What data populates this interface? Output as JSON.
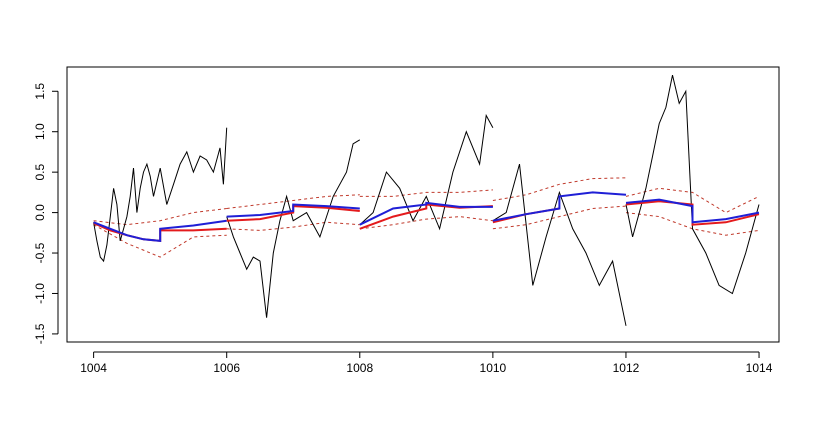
{
  "chart_data": {
    "type": "line",
    "title": "",
    "xlabel": "",
    "ylabel": "",
    "xlim": [
      1003.6,
      1014.3
    ],
    "ylim": [
      -1.6,
      1.8
    ],
    "x_ticks": [
      1004,
      1006,
      1008,
      1010,
      1012,
      1014
    ],
    "x_tick_labels": [
      "1004",
      "1006",
      "1008",
      "1010",
      "1012",
      "1014"
    ],
    "y_ticks": [
      -1.5,
      -1.0,
      -0.5,
      0.0,
      0.5,
      1.0,
      1.5
    ],
    "y_tick_labels": [
      "-1.5",
      "-1.0",
      "-0.5",
      "0.0",
      "0.5",
      "1.0",
      "1.5"
    ],
    "grid": false,
    "legend": "none",
    "colors": {
      "observed": "#000000",
      "red_fit": "#e41a1c",
      "blue_fit": "#1f1fd6",
      "band": "#c0392b"
    },
    "segments": [
      {
        "observed": [
          [
            1004.0,
            -0.12
          ],
          [
            1004.05,
            -0.35
          ],
          [
            1004.1,
            -0.55
          ],
          [
            1004.15,
            -0.6
          ],
          [
            1004.2,
            -0.4
          ],
          [
            1004.25,
            -0.05
          ],
          [
            1004.3,
            0.3
          ],
          [
            1004.35,
            0.1
          ],
          [
            1004.4,
            -0.35
          ],
          [
            1004.45,
            -0.2
          ],
          [
            1004.5,
            -0.05
          ],
          [
            1004.55,
            0.2
          ],
          [
            1004.6,
            0.55
          ],
          [
            1004.65,
            0.0
          ],
          [
            1004.7,
            0.3
          ],
          [
            1004.75,
            0.5
          ],
          [
            1004.8,
            0.6
          ],
          [
            1004.85,
            0.45
          ],
          [
            1004.9,
            0.2
          ],
          [
            1005.0,
            0.55
          ],
          [
            1005.1,
            0.1
          ],
          [
            1005.2,
            0.35
          ],
          [
            1005.3,
            0.6
          ],
          [
            1005.4,
            0.75
          ],
          [
            1005.5,
            0.5
          ],
          [
            1005.6,
            0.7
          ],
          [
            1005.7,
            0.65
          ],
          [
            1005.8,
            0.5
          ],
          [
            1005.9,
            0.8
          ],
          [
            1005.95,
            0.35
          ],
          [
            1006.0,
            1.05
          ]
        ],
        "red": [
          [
            1004.0,
            -0.13
          ],
          [
            1004.25,
            -0.22
          ],
          [
            1004.5,
            -0.28
          ],
          [
            1004.75,
            -0.33
          ],
          [
            1005.0,
            -0.35
          ],
          [
            1005.0,
            -0.22
          ],
          [
            1005.5,
            -0.22
          ],
          [
            1006.0,
            -0.2
          ]
        ],
        "blue": [
          [
            1004.0,
            -0.12
          ],
          [
            1004.25,
            -0.2
          ],
          [
            1004.5,
            -0.28
          ],
          [
            1004.75,
            -0.33
          ],
          [
            1005.0,
            -0.35
          ],
          [
            1005.0,
            -0.2
          ],
          [
            1005.5,
            -0.16
          ],
          [
            1006.0,
            -0.1
          ]
        ],
        "band_upper": [
          [
            1004.0,
            -0.1
          ],
          [
            1004.5,
            -0.15
          ],
          [
            1005.0,
            -0.1
          ],
          [
            1005.5,
            -0.0
          ],
          [
            1006.0,
            0.05
          ]
        ],
        "band_lower": [
          [
            1004.0,
            -0.15
          ],
          [
            1004.5,
            -0.38
          ],
          [
            1005.0,
            -0.55
          ],
          [
            1005.5,
            -0.3
          ],
          [
            1006.0,
            -0.28
          ]
        ]
      },
      {
        "observed": [
          [
            1006.0,
            -0.05
          ],
          [
            1006.1,
            -0.3
          ],
          [
            1006.2,
            -0.5
          ],
          [
            1006.3,
            -0.7
          ],
          [
            1006.4,
            -0.55
          ],
          [
            1006.5,
            -0.6
          ],
          [
            1006.6,
            -1.3
          ],
          [
            1006.7,
            -0.5
          ],
          [
            1006.8,
            -0.1
          ],
          [
            1006.9,
            0.2
          ],
          [
            1007.0,
            -0.1
          ],
          [
            1007.2,
            0.0
          ],
          [
            1007.4,
            -0.3
          ],
          [
            1007.6,
            0.2
          ],
          [
            1007.8,
            0.5
          ],
          [
            1007.9,
            0.85
          ],
          [
            1008.0,
            0.9
          ]
        ],
        "red": [
          [
            1006.0,
            -0.1
          ],
          [
            1006.5,
            -0.08
          ],
          [
            1007.0,
            0.0
          ],
          [
            1007.0,
            0.08
          ],
          [
            1007.5,
            0.06
          ],
          [
            1008.0,
            0.02
          ]
        ],
        "blue": [
          [
            1006.0,
            -0.05
          ],
          [
            1006.5,
            -0.03
          ],
          [
            1007.0,
            0.02
          ],
          [
            1007.0,
            0.1
          ],
          [
            1007.5,
            0.08
          ],
          [
            1008.0,
            0.05
          ]
        ],
        "band_upper": [
          [
            1006.0,
            0.05
          ],
          [
            1006.5,
            0.1
          ],
          [
            1007.0,
            0.15
          ],
          [
            1007.5,
            0.2
          ],
          [
            1008.0,
            0.22
          ]
        ],
        "band_lower": [
          [
            1006.0,
            -0.2
          ],
          [
            1006.5,
            -0.22
          ],
          [
            1007.0,
            -0.18
          ],
          [
            1007.5,
            -0.12
          ],
          [
            1008.0,
            -0.15
          ]
        ]
      },
      {
        "observed": [
          [
            1008.0,
            -0.15
          ],
          [
            1008.2,
            0.0
          ],
          [
            1008.4,
            0.5
          ],
          [
            1008.6,
            0.3
          ],
          [
            1008.8,
            -0.1
          ],
          [
            1009.0,
            0.2
          ],
          [
            1009.2,
            -0.2
          ],
          [
            1009.4,
            0.5
          ],
          [
            1009.6,
            1.0
          ],
          [
            1009.8,
            0.6
          ],
          [
            1009.9,
            1.2
          ],
          [
            1010.0,
            1.05
          ]
        ],
        "red": [
          [
            1008.0,
            -0.2
          ],
          [
            1008.5,
            -0.05
          ],
          [
            1009.0,
            0.05
          ],
          [
            1009.0,
            0.1
          ],
          [
            1009.5,
            0.06
          ],
          [
            1010.0,
            0.08
          ]
        ],
        "blue": [
          [
            1008.0,
            -0.15
          ],
          [
            1008.5,
            0.05
          ],
          [
            1009.0,
            0.1
          ],
          [
            1009.0,
            0.12
          ],
          [
            1009.5,
            0.07
          ],
          [
            1010.0,
            0.07
          ]
        ],
        "band_upper": [
          [
            1008.0,
            0.2
          ],
          [
            1008.5,
            0.2
          ],
          [
            1009.0,
            0.25
          ],
          [
            1009.5,
            0.25
          ],
          [
            1010.0,
            0.28
          ]
        ],
        "band_lower": [
          [
            1008.0,
            -0.2
          ],
          [
            1008.5,
            -0.15
          ],
          [
            1009.0,
            -0.08
          ],
          [
            1009.5,
            -0.05
          ],
          [
            1010.0,
            -0.1
          ]
        ]
      },
      {
        "observed": [
          [
            1010.0,
            -0.1
          ],
          [
            1010.2,
            0.0
          ],
          [
            1010.4,
            0.6
          ],
          [
            1010.6,
            -0.9
          ],
          [
            1010.8,
            -0.3
          ],
          [
            1011.0,
            0.25
          ],
          [
            1011.2,
            -0.2
          ],
          [
            1011.4,
            -0.5
          ],
          [
            1011.6,
            -0.9
          ],
          [
            1011.8,
            -0.6
          ],
          [
            1012.0,
            -1.4
          ]
        ],
        "red": [
          [
            1010.0,
            -0.12
          ],
          [
            1010.5,
            -0.02
          ],
          [
            1011.0,
            0.05
          ]
        ],
        "blue": [
          [
            1010.0,
            -0.1
          ],
          [
            1010.5,
            -0.02
          ],
          [
            1011.0,
            0.05
          ],
          [
            1011.0,
            0.2
          ],
          [
            1011.5,
            0.25
          ],
          [
            1012.0,
            0.22
          ]
        ],
        "band_upper": [
          [
            1010.0,
            0.15
          ],
          [
            1010.5,
            0.22
          ],
          [
            1011.0,
            0.35
          ],
          [
            1011.5,
            0.42
          ],
          [
            1012.0,
            0.43
          ]
        ],
        "band_lower": [
          [
            1010.0,
            -0.2
          ],
          [
            1010.5,
            -0.15
          ],
          [
            1011.0,
            -0.05
          ],
          [
            1011.5,
            0.05
          ],
          [
            1012.0,
            0.08
          ]
        ]
      },
      {
        "observed": [
          [
            1012.0,
            0.1
          ],
          [
            1012.1,
            -0.3
          ],
          [
            1012.2,
            0.0
          ],
          [
            1012.3,
            0.3
          ],
          [
            1012.4,
            0.7
          ],
          [
            1012.5,
            1.1
          ],
          [
            1012.6,
            1.3
          ],
          [
            1012.7,
            1.7
          ],
          [
            1012.8,
            1.35
          ],
          [
            1012.9,
            1.5
          ],
          [
            1013.0,
            -0.2
          ],
          [
            1013.2,
            -0.5
          ],
          [
            1013.4,
            -0.9
          ],
          [
            1013.6,
            -1.0
          ],
          [
            1013.8,
            -0.5
          ],
          [
            1014.0,
            0.1
          ]
        ],
        "red": [
          [
            1012.0,
            0.1
          ],
          [
            1012.5,
            0.14
          ],
          [
            1013.0,
            0.1
          ],
          [
            1013.0,
            -0.15
          ],
          [
            1013.5,
            -0.12
          ],
          [
            1014.0,
            -0.02
          ]
        ],
        "blue": [
          [
            1012.0,
            0.12
          ],
          [
            1012.5,
            0.16
          ],
          [
            1013.0,
            0.08
          ],
          [
            1013.0,
            -0.12
          ],
          [
            1013.5,
            -0.08
          ],
          [
            1014.0,
            0.0
          ]
        ],
        "band_upper": [
          [
            1012.0,
            0.2
          ],
          [
            1012.5,
            0.3
          ],
          [
            1013.0,
            0.25
          ],
          [
            1013.5,
            0.0
          ],
          [
            1014.0,
            0.2
          ]
        ],
        "band_lower": [
          [
            1012.0,
            0.0
          ],
          [
            1012.5,
            -0.05
          ],
          [
            1013.0,
            -0.2
          ],
          [
            1013.5,
            -0.28
          ],
          [
            1014.0,
            -0.22
          ]
        ]
      }
    ]
  }
}
